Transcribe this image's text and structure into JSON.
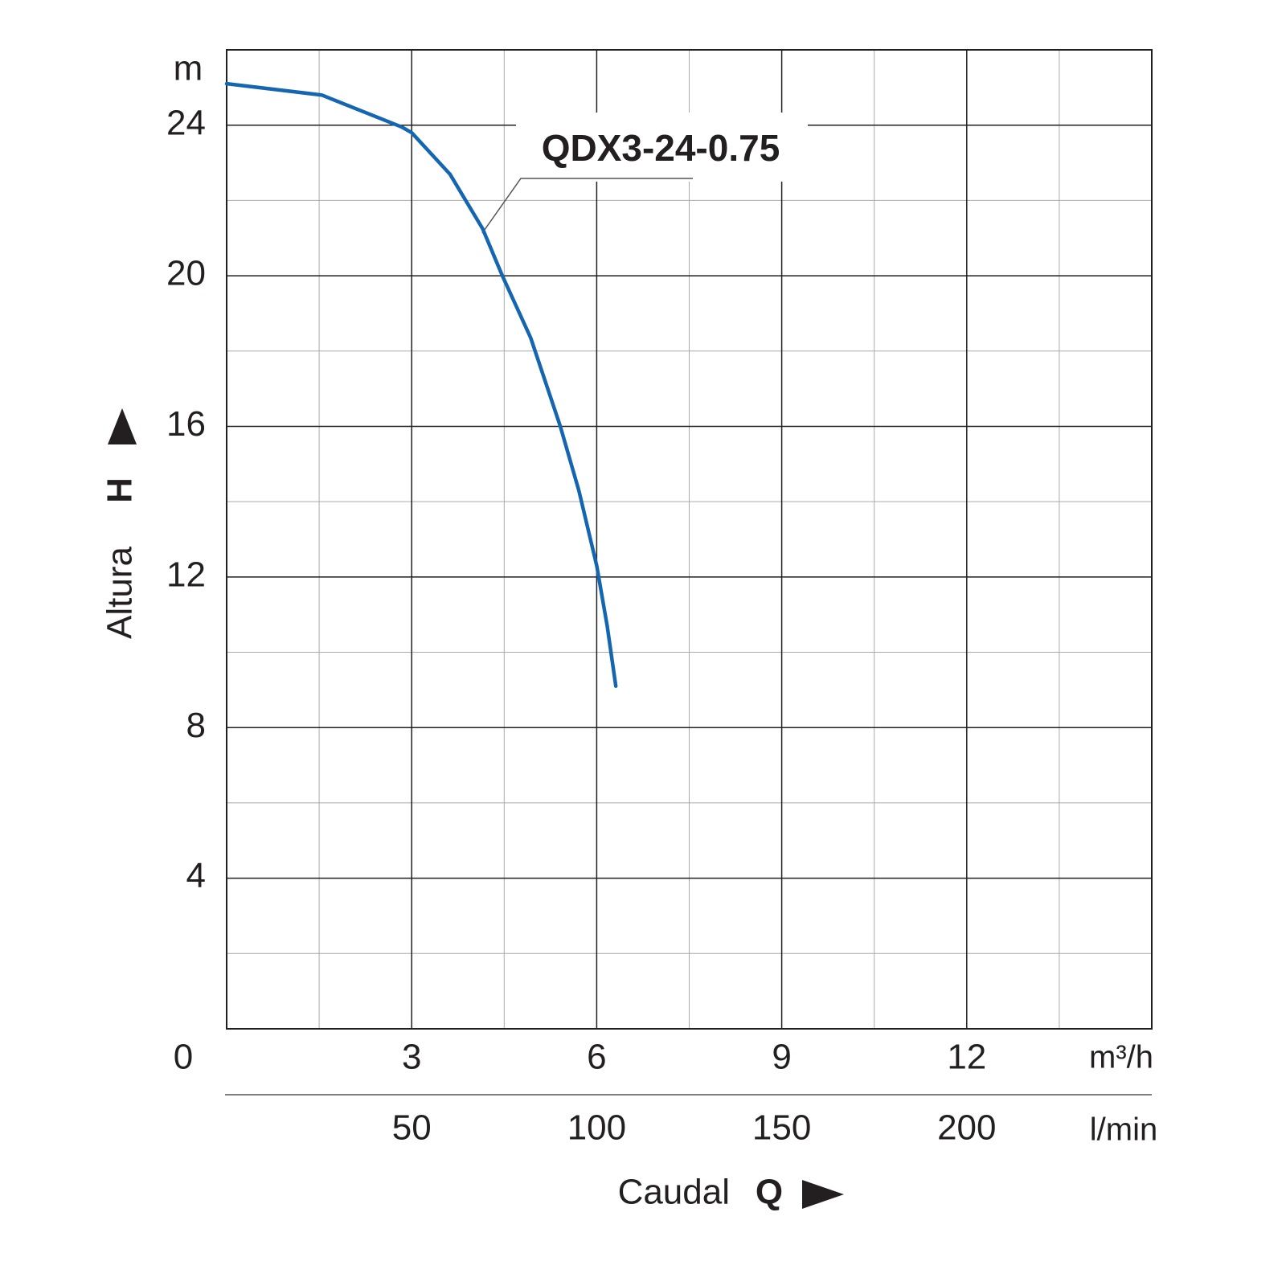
{
  "chart_data": {
    "type": "line",
    "annotation": "QDX3-24-0.75",
    "x_unit": "m³/h",
    "x2_unit": "l/min",
    "y_unit": "m",
    "x_title": "Caudal",
    "x_symbol": "Q",
    "y_title": "Altura",
    "y_symbol": "H",
    "xlim": [
      0,
      15
    ],
    "xticks": [
      0,
      3,
      6,
      9,
      12
    ],
    "x2lim": [
      0,
      250
    ],
    "x2ticks": [
      50,
      100,
      150,
      200
    ],
    "ylim": [
      0,
      26
    ],
    "yticks": [
      4,
      8,
      12,
      16,
      20,
      24
    ],
    "grid": true,
    "series": [
      {
        "name": "QDX3-24-0.75",
        "color": "#1466b0",
        "x": [
          0,
          1.54,
          2.84,
          3.0,
          3.62,
          4.15,
          4.47,
          4.93,
          5.41,
          5.71,
          6.0,
          6.17,
          6.31
        ],
        "values": [
          25.1,
          24.8,
          23.95,
          23.8,
          22.7,
          21.25,
          20.0,
          18.35,
          16.0,
          14.3,
          12.3,
          10.7,
          9.1
        ]
      }
    ]
  }
}
